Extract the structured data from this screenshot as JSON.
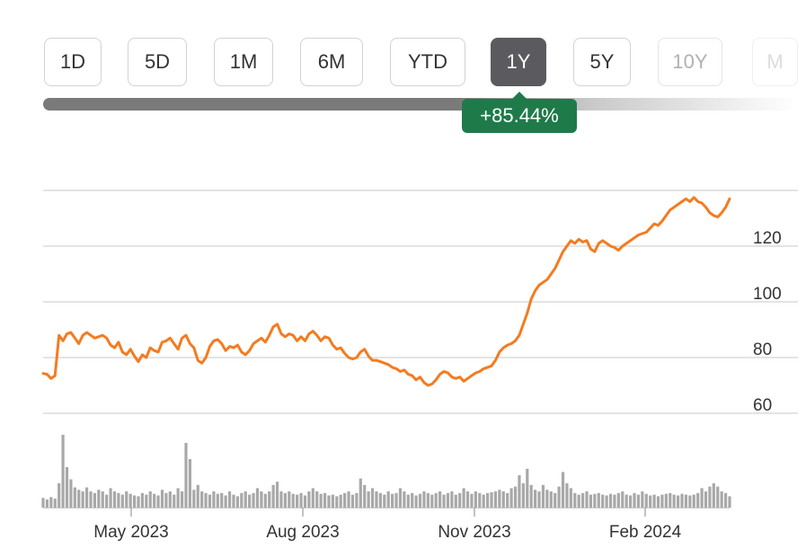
{
  "range_selector": {
    "buttons": [
      {
        "label": "1D",
        "state": "normal"
      },
      {
        "label": "5D",
        "state": "normal"
      },
      {
        "label": "1M",
        "state": "normal"
      },
      {
        "label": "6M",
        "state": "normal"
      },
      {
        "label": "YTD",
        "state": "normal"
      },
      {
        "label": "1Y",
        "state": "active"
      },
      {
        "label": "5Y",
        "state": "normal"
      },
      {
        "label": "10Y",
        "state": "faded"
      },
      {
        "label": "M",
        "state": "ghost"
      }
    ],
    "change_label": "+85.44%",
    "change_color": "#1f7a4a"
  },
  "chart_data": {
    "type": "line",
    "title": "",
    "xlabel": "",
    "ylabel": "",
    "x_ticks": [
      "May 2023",
      "Aug 2023",
      "Nov 2023",
      "Feb 2024"
    ],
    "y_ticks": [
      60,
      80,
      100,
      120
    ],
    "ylim": [
      55,
      142
    ],
    "grid": true,
    "line_color": "#f47b20",
    "volume_color": "#a8a8a8",
    "series": [
      {
        "values": [
          74.3,
          74,
          72.5,
          73.5,
          88,
          86,
          88.5,
          89,
          87,
          85,
          88,
          89,
          88,
          87,
          87.5,
          88,
          87,
          84.5,
          83.5,
          85.5,
          82,
          81,
          83,
          80.5,
          78.5,
          81,
          80,
          83.5,
          82.5,
          82,
          85.5,
          86,
          87,
          85,
          83,
          87,
          88,
          85,
          83.5,
          79,
          78,
          80,
          84,
          86,
          86.5,
          85,
          82.5,
          84,
          83.5,
          84.5,
          82,
          81,
          82.5,
          85,
          86,
          87,
          85.5,
          88,
          91,
          92,
          88.5,
          87.5,
          88.5,
          88,
          86,
          87.5,
          86,
          88.5,
          89.5,
          88,
          86,
          87.5,
          87,
          84.5,
          83,
          83.5,
          81.5,
          80,
          79.5,
          80,
          82,
          83,
          80.5,
          79,
          79,
          78.5,
          78,
          77.5,
          76.5,
          76,
          75,
          75.5,
          74,
          73.5,
          72,
          73,
          71,
          70,
          70.5,
          72,
          74,
          75,
          74.5,
          73,
          72.5,
          73,
          71.5,
          72.5,
          73.5,
          74.5,
          75,
          76,
          76.5,
          77,
          79,
          82,
          83.5,
          84.5,
          85,
          86,
          88,
          92,
          96,
          101,
          104,
          106,
          107,
          108,
          110,
          112,
          115,
          118,
          120,
          122,
          121,
          122.5,
          121.5,
          122,
          119,
          118,
          121,
          122,
          121,
          120,
          119.5,
          118.5,
          120,
          121,
          122,
          123,
          124,
          124.5,
          125,
          126.5,
          128,
          127.5,
          129,
          131,
          133,
          134,
          135,
          136,
          137,
          136,
          137.5,
          136,
          135.5,
          134,
          132,
          131,
          130.5,
          132,
          134,
          137
        ],
        "volumes": [
          1.2,
          1,
          1.3,
          1.1,
          3,
          9,
          5,
          3.5,
          2.5,
          2.2,
          2,
          2.5,
          2,
          1.8,
          2.2,
          2,
          1.6,
          2.4,
          2,
          1.8,
          1.6,
          2,
          1.7,
          1.5,
          1.4,
          1.8,
          1.6,
          2,
          1.7,
          1.5,
          2.2,
          1.8,
          2,
          1.6,
          2.4,
          2,
          8,
          6,
          2.2,
          2.8,
          2,
          1.8,
          1.6,
          2,
          1.7,
          1.8,
          1.5,
          2,
          1.6,
          1.4,
          1.8,
          2,
          1.6,
          1.8,
          2.4,
          2,
          1.7,
          2,
          2.8,
          3.2,
          2,
          1.8,
          2,
          1.7,
          1.6,
          1.8,
          1.5,
          2,
          2.4,
          2,
          1.7,
          1.8,
          1.5,
          1.6,
          1.4,
          1.6,
          1.8,
          2,
          1.6,
          1.8,
          3.6,
          2.8,
          2,
          2.4,
          2,
          1.8,
          1.6,
          2,
          1.7,
          1.8,
          2.4,
          2,
          1.6,
          1.8,
          1.5,
          1.7,
          2,
          1.8,
          1.6,
          1.8,
          2,
          1.6,
          1.8,
          2,
          1.6,
          1.8,
          2.4,
          2,
          1.7,
          2,
          1.8,
          1.6,
          1.8,
          1.9,
          2,
          2.2,
          2,
          1.8,
          2.4,
          2.6,
          4,
          3,
          4.8,
          2.8,
          2.2,
          2,
          2.8,
          2.2,
          2,
          1.8,
          2.6,
          4.4,
          3,
          2.4,
          1.8,
          1.6,
          1.8,
          2,
          1.6,
          1.7,
          1.8,
          1.6,
          1.5,
          1.7,
          1.6,
          1.8,
          2,
          1.6,
          1.5,
          1.8,
          1.6,
          2,
          1.7,
          1.5,
          1.6,
          1.4,
          1.6,
          1.7,
          1.8,
          1.6,
          1.5,
          1.7,
          1.6,
          1.5,
          1.6,
          1.8,
          2.4,
          2,
          2.6,
          3,
          2.6,
          2,
          1.8,
          1.4
        ]
      }
    ]
  }
}
